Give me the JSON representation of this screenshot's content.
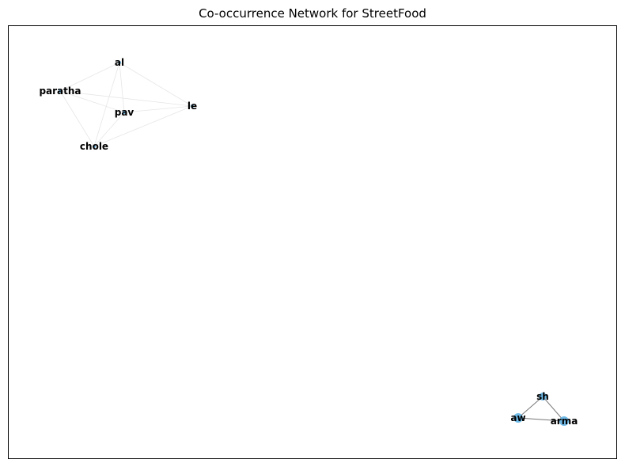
{
  "title": "Co-occurrence Network for StreetFood",
  "colors": {
    "node": "#6fb9e6",
    "edge_strong": "#777777",
    "edge_weak": "#e6e6e6",
    "frame": "#000000"
  },
  "network": {
    "nodes": [
      {
        "id": "al",
        "label": "al"
      },
      {
        "id": "paratha",
        "label": "paratha"
      },
      {
        "id": "pav",
        "label": "pav"
      },
      {
        "id": "le",
        "label": "le"
      },
      {
        "id": "chole",
        "label": "chole"
      },
      {
        "id": "sh",
        "label": "sh"
      },
      {
        "id": "aw",
        "label": "aw"
      },
      {
        "id": "arma",
        "label": "arma"
      }
    ],
    "edges": [
      {
        "source": "al",
        "target": "paratha",
        "strength": "weak"
      },
      {
        "source": "al",
        "target": "pav",
        "strength": "weak"
      },
      {
        "source": "al",
        "target": "le",
        "strength": "weak"
      },
      {
        "source": "al",
        "target": "chole",
        "strength": "weak"
      },
      {
        "source": "paratha",
        "target": "pav",
        "strength": "weak"
      },
      {
        "source": "paratha",
        "target": "le",
        "strength": "weak"
      },
      {
        "source": "paratha",
        "target": "chole",
        "strength": "weak"
      },
      {
        "source": "pav",
        "target": "le",
        "strength": "weak"
      },
      {
        "source": "pav",
        "target": "chole",
        "strength": "weak"
      },
      {
        "source": "le",
        "target": "chole",
        "strength": "weak"
      },
      {
        "source": "sh",
        "target": "aw",
        "strength": "strong"
      },
      {
        "source": "sh",
        "target": "arma",
        "strength": "strong"
      },
      {
        "source": "aw",
        "target": "arma",
        "strength": "strong"
      }
    ]
  }
}
